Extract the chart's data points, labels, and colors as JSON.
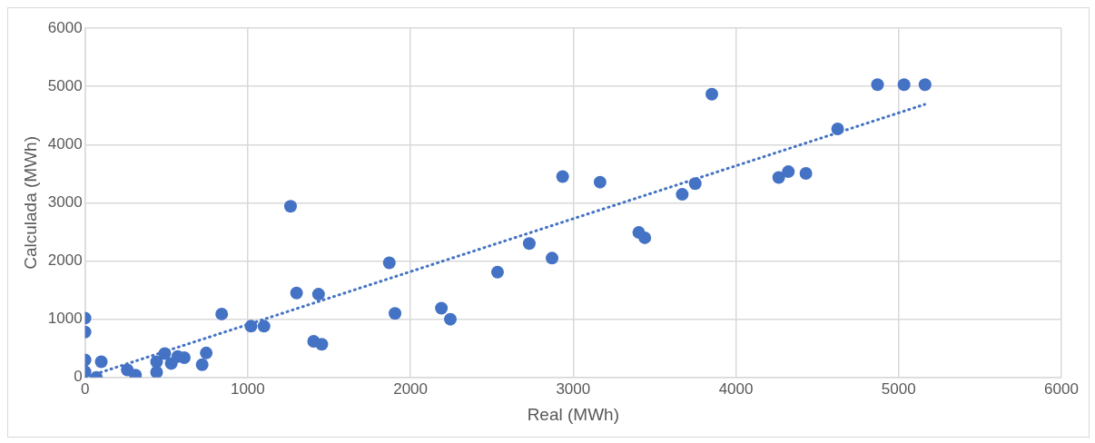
{
  "chart_data": {
    "type": "scatter",
    "xlabel": "Real (MWh)",
    "ylabel": "Calculada (MWh)",
    "xlim": [
      0,
      6000
    ],
    "xticks": [
      0,
      1000,
      2000,
      3000,
      4000,
      5000,
      6000
    ],
    "ylim": [
      0,
      6000
    ],
    "yticks": [
      0,
      1000,
      2000,
      3000,
      4000,
      5000,
      6000
    ],
    "grid": true,
    "legend": false,
    "marker": "circle",
    "series": [
      {
        "type": "scatter",
        "color": "#4472c4",
        "x": [
          0,
          0,
          0,
          0,
          70,
          100,
          260,
          310,
          440,
          440,
          490,
          530,
          570,
          610,
          720,
          745,
          840,
          1020,
          1100,
          1300,
          1435,
          1405,
          1455,
          1263,
          1870,
          1905,
          2190,
          2245,
          2535,
          2730,
          2870,
          2935,
          3165,
          3403,
          3440,
          3670,
          3750,
          3852,
          4263,
          4322,
          4430,
          4625,
          4870,
          5033,
          5162
        ],
        "values": [
          1020,
          780,
          300,
          100,
          0,
          270,
          130,
          40,
          90,
          270,
          410,
          240,
          360,
          340,
          220,
          420,
          1090,
          880,
          880,
          1450,
          1430,
          620,
          570,
          2940,
          1970,
          1100,
          1190,
          1000,
          1810,
          2300,
          2050,
          3450,
          3355,
          2490,
          2400,
          3145,
          3330,
          4865,
          3435,
          3535,
          3505,
          4270,
          5030,
          5030,
          5030
        ]
      },
      {
        "type": "line",
        "color": "#4472c4",
        "line_style": "dotted",
        "marker": "none",
        "x": [
          0,
          5160
        ],
        "values": [
          0,
          4690
        ]
      }
    ]
  }
}
